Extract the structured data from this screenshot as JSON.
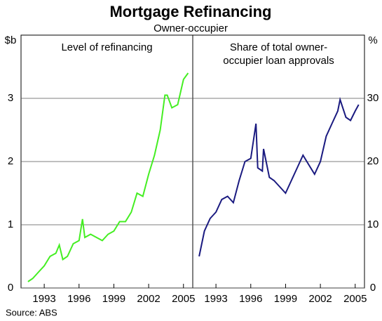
{
  "title": "Mortgage Refinancing",
  "subtitle": "Owner-occupier",
  "source": "Source: ABS",
  "chart_data": [
    {
      "type": "line",
      "title": [
        "Level of refinancing"
      ],
      "y_label": "$b",
      "color": "#44ee22",
      "x": [
        1991.6,
        1992,
        1992.5,
        1993,
        1993.5,
        1994,
        1994.3,
        1994.6,
        1995,
        1995.5,
        1996,
        1996.3,
        1996.5,
        1997,
        1997.5,
        1998,
        1998.5,
        1999,
        1999.5,
        2000,
        2000.5,
        2001,
        2001.5,
        2002,
        2002.5,
        2003,
        2003.4,
        2003.6,
        2004,
        2004.5,
        2005,
        2005.4
      ],
      "values": [
        0.1,
        0.15,
        0.25,
        0.35,
        0.5,
        0.55,
        0.68,
        0.45,
        0.5,
        0.7,
        0.75,
        1.09,
        0.8,
        0.85,
        0.8,
        0.75,
        0.85,
        0.9,
        1.05,
        1.05,
        1.2,
        1.5,
        1.45,
        1.8,
        2.1,
        2.5,
        3.05,
        3.05,
        2.85,
        2.9,
        3.3,
        3.4
      ],
      "xlim": [
        1991,
        2005.8
      ],
      "xticks": [
        1993,
        1996,
        1999,
        2002,
        2005
      ],
      "ylim": [
        0,
        4
      ],
      "yticks": [
        0,
        1,
        2,
        3
      ],
      "grid": true
    },
    {
      "type": "line",
      "title": [
        "Share of total owner-",
        "occupier loan approvals"
      ],
      "y_label": "%",
      "color": "#1a1a80",
      "x": [
        1991.55,
        1992,
        1992.5,
        1993,
        1993.5,
        1994,
        1994.5,
        1995,
        1995.5,
        1996,
        1996.45,
        1996.6,
        1997,
        1997.1,
        1997.6,
        1998,
        1998.5,
        1999,
        1999.5,
        2000,
        2000.5,
        2001,
        2001.5,
        2002,
        2002.5,
        2003,
        2003.5,
        2003.7,
        2004.2,
        2004.6,
        2005,
        2005.3
      ],
      "values": [
        5,
        9,
        11,
        12,
        14,
        14.5,
        13.5,
        17,
        20,
        20.5,
        26,
        19,
        18.5,
        22,
        17.5,
        17,
        16,
        15,
        17,
        19,
        21,
        19.5,
        18,
        20,
        24,
        26,
        28,
        29.8,
        27,
        26.5,
        28,
        29
      ],
      "xlim": [
        1991,
        2005.8
      ],
      "xticks": [
        1993,
        1996,
        1999,
        2002,
        2005
      ],
      "ylim": [
        0,
        40
      ],
      "yticks": [
        0,
        10,
        20,
        30
      ],
      "grid": true
    }
  ]
}
